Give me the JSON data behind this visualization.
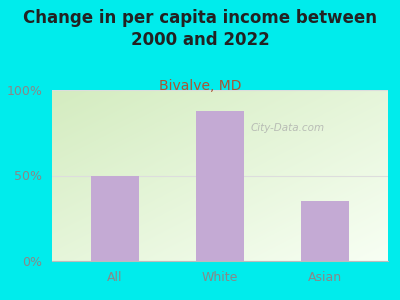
{
  "title": "Change in per capita income between\n2000 and 2022",
  "subtitle": "Bivalve, MD",
  "categories": [
    "All",
    "White",
    "Asian"
  ],
  "values": [
    50,
    88,
    35
  ],
  "bar_color": "#c4aad4",
  "bg_color": "#00ECEC",
  "yticks": [
    0,
    50,
    100
  ],
  "ytick_labels": [
    "0%",
    "50%",
    "100%"
  ],
  "ylim": [
    0,
    100
  ],
  "title_fontsize": 12,
  "subtitle_fontsize": 10,
  "tick_fontsize": 9,
  "tick_color": "#888888",
  "title_color": "#222222",
  "subtitle_color": "#aa5533",
  "watermark": "City-Data.com",
  "grid_color": "#dddddd",
  "plot_grad_top_left": "#d4ecc0",
  "plot_grad_bottom_right": "#f8fff4"
}
